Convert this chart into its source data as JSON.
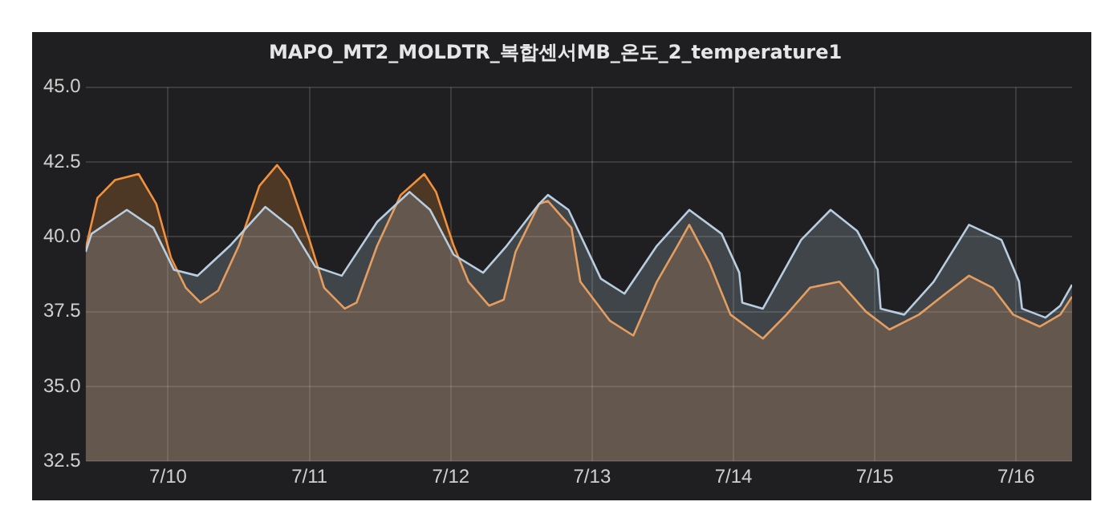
{
  "chart_data": {
    "type": "area",
    "title": "MAPO_MT2_MOLDTR_복합센서MB_온도_2_temperature1",
    "xlim": [
      "--07-09T10:00",
      "--07-16T09:30"
    ],
    "xticks": [
      {
        "value": "--07-10",
        "label": "7/10"
      },
      {
        "value": "--07-11",
        "label": "7/11"
      },
      {
        "value": "--07-12",
        "label": "7/12"
      },
      {
        "value": "--07-13",
        "label": "7/13"
      },
      {
        "value": "--07-14",
        "label": "7/14"
      },
      {
        "value": "--07-15",
        "label": "7/15"
      },
      {
        "value": "--07-16",
        "label": "7/16"
      }
    ],
    "ylim": [
      32.5,
      45
    ],
    "yticks": [
      {
        "value": 32.5,
        "label": "32.5"
      },
      {
        "value": 35,
        "label": "35.0"
      },
      {
        "value": 37.5,
        "label": "37.5"
      },
      {
        "value": 40,
        "label": "40.0"
      },
      {
        "value": 42.5,
        "label": "42.5"
      },
      {
        "value": 45,
        "label": "45.0"
      }
    ],
    "grid": true,
    "marker": "none",
    "line_style": "solid",
    "series": [
      {
        "color": "#b8cde0",
        "x": [
          "--07-09T10:00",
          "--07-09T11:00",
          "--07-09T17:00",
          "--07-09T21:30",
          "--07-10T01:00",
          "--07-10T05:00",
          "--07-10T10:30",
          "--07-10T16:30",
          "--07-10T21:00",
          "--07-11T01:00",
          "--07-11T05:30",
          "--07-11T11:30",
          "--07-11T17:00",
          "--07-11T20:30",
          "--07-12T00:30",
          "--07-12T05:30",
          "--07-12T09:30",
          "--07-12T15:00",
          "--07-12T16:30",
          "--07-12T20:00",
          "--07-13T01:30",
          "--07-13T05:30",
          "--07-13T11:00",
          "--07-13T16:30",
          "--07-13T22:00",
          "--07-14T01:00",
          "--07-14T01:30",
          "--07-14T05:00",
          "--07-14T11:30",
          "--07-14T16:30",
          "--07-14T21:00",
          "--07-15T00:30",
          "--07-15T01:00",
          "--07-15T05:00",
          "--07-15T10:00",
          "--07-15T16:00",
          "--07-15T21:30",
          "--07-16T00:30",
          "--07-16T01:00",
          "--07-16T05:00",
          "--07-16T07:30",
          "--07-16T09:30"
        ],
        "values": [
          39.5,
          40.1,
          40.9,
          40.3,
          38.9,
          38.7,
          39.7,
          41.0,
          40.3,
          39.0,
          38.7,
          40.5,
          41.5,
          40.9,
          39.4,
          38.8,
          39.7,
          41.1,
          41.4,
          40.9,
          38.6,
          38.1,
          39.7,
          40.9,
          40.1,
          38.8,
          37.8,
          37.6,
          39.9,
          40.9,
          40.2,
          38.9,
          37.6,
          37.4,
          38.5,
          40.4,
          39.9,
          38.5,
          37.6,
          37.3,
          37.7,
          38.4
        ]
      },
      {
        "color": "#f2913d",
        "x": [
          "--07-09T10:00",
          "--07-09T12:00",
          "--07-09T15:00",
          "--07-09T19:00",
          "--07-09T22:00",
          "--07-10T00:30",
          "--07-10T03:00",
          "--07-10T05:30",
          "--07-10T08:30",
          "--07-10T12:00",
          "--07-10T15:30",
          "--07-10T18:30",
          "--07-10T20:30",
          "--07-11T00:00",
          "--07-11T02:30",
          "--07-11T06:00",
          "--07-11T08:00",
          "--07-11T11:30",
          "--07-11T15:30",
          "--07-11T19:30",
          "--07-11T21:30",
          "--07-12T00:30",
          "--07-12T03:00",
          "--07-12T06:30",
          "--07-12T09:00",
          "--07-12T11:00",
          "--07-12T15:00",
          "--07-12T16:30",
          "--07-12T20:30",
          "--07-12T22:00",
          "--07-13T03:00",
          "--07-13T07:00",
          "--07-13T11:00",
          "--07-13T14:30",
          "--07-13T16:30",
          "--07-13T20:00",
          "--07-13T23:30",
          "--07-14T05:00",
          "--07-14T09:00",
          "--07-14T13:00",
          "--07-14T18:00",
          "--07-14T22:30",
          "--07-15T02:30",
          "--07-15T07:30",
          "--07-15T12:00",
          "--07-15T16:00",
          "--07-15T20:00",
          "--07-15T23:30",
          "--07-16T04:00",
          "--07-16T07:30",
          "--07-16T09:30"
        ],
        "values": [
          39.6,
          41.3,
          41.9,
          42.1,
          41.1,
          39.3,
          38.3,
          37.8,
          38.2,
          39.7,
          41.7,
          42.4,
          41.9,
          39.9,
          38.3,
          37.6,
          37.8,
          39.7,
          41.4,
          42.1,
          41.5,
          39.7,
          38.5,
          37.7,
          37.9,
          39.5,
          41.1,
          41.2,
          40.3,
          38.5,
          37.2,
          36.7,
          38.5,
          39.7,
          40.4,
          39.1,
          37.4,
          36.6,
          37.4,
          38.3,
          38.5,
          37.5,
          36.9,
          37.4,
          38.1,
          38.7,
          38.3,
          37.4,
          37.0,
          37.4,
          38.0
        ]
      }
    ]
  }
}
